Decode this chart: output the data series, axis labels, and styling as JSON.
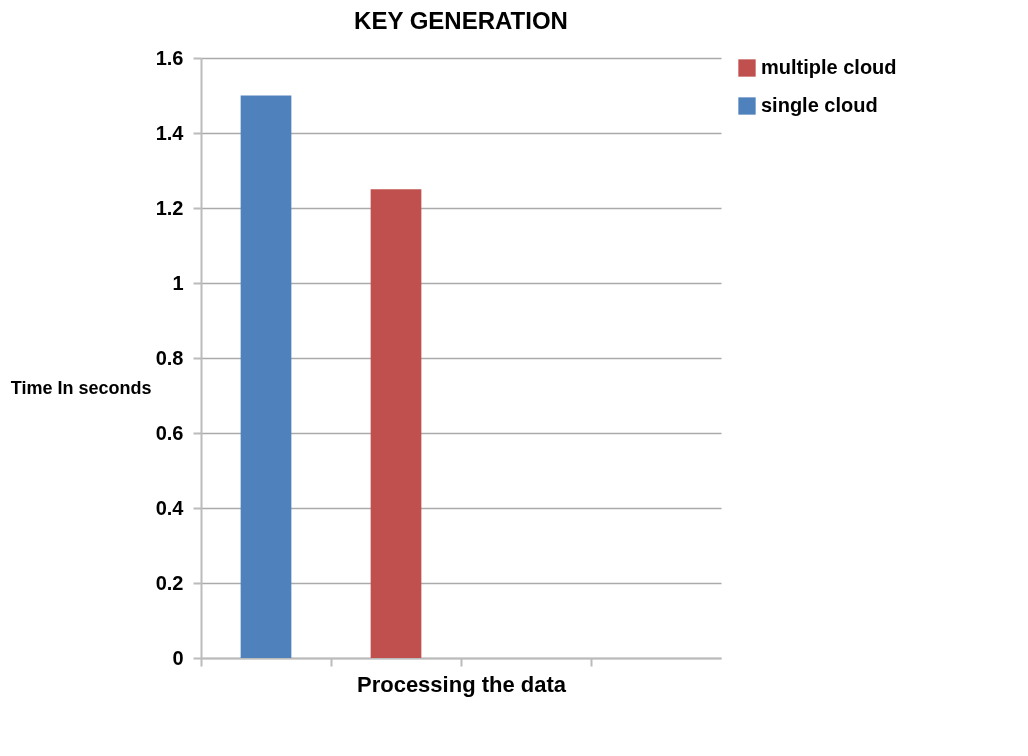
{
  "chart_data": {
    "type": "bar",
    "title": "KEY GENERATION",
    "xlabel": "Processing the data",
    "ylabel": "Time In seconds",
    "categories": [
      null,
      null,
      null,
      null
    ],
    "series": [
      {
        "name": "multiple cloud",
        "color": "#c0504d",
        "values": [
          null,
          1.25,
          null,
          null
        ]
      },
      {
        "name": "single cloud",
        "color": "#4f81bd",
        "values": [
          1.5,
          null,
          null,
          null
        ]
      }
    ],
    "ylim": [
      0,
      1.6
    ],
    "yticks": [
      0,
      0.2,
      0.4,
      0.6,
      0.8,
      1,
      1.2,
      1.4,
      1.6
    ],
    "grid": "y",
    "legend": "right"
  }
}
